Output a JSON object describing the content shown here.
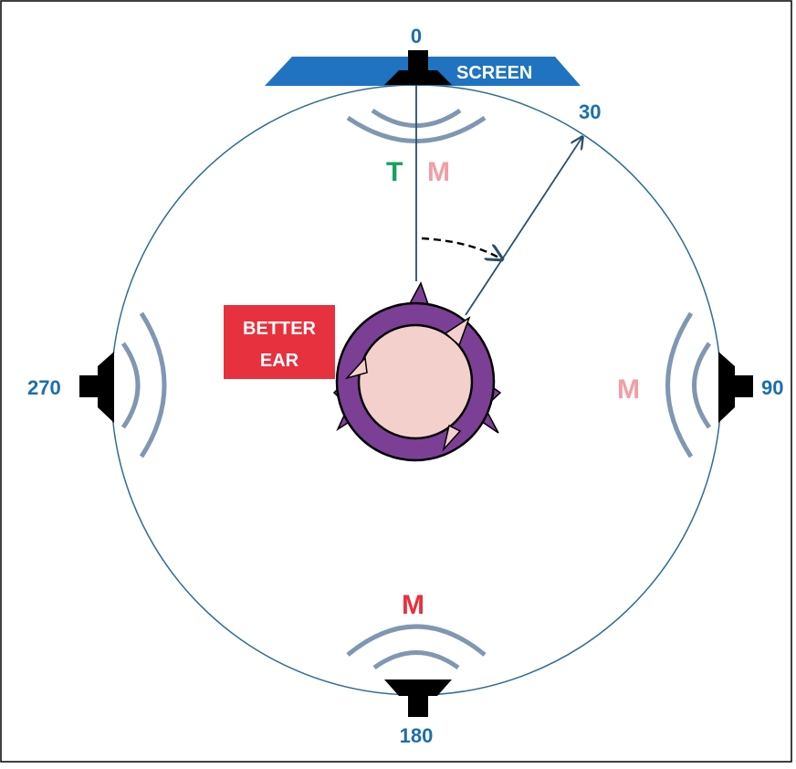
{
  "diagram": {
    "angles": {
      "front": "0",
      "right": "90",
      "back": "180",
      "left": "270",
      "target_angle": "30"
    },
    "screen_label": "SCREEN",
    "better_ear": {
      "line1": "BETTER",
      "line2": "EAR"
    },
    "source_labels": {
      "front_target": "T",
      "front_masker": "M",
      "right_masker": "M",
      "back_masker": "M"
    },
    "colors": {
      "angle_text": "#1a6fae",
      "screen": "#1f73c1",
      "circle": "#2f6d94",
      "arcs": "#7f97b2",
      "target_green": "#16a25c",
      "masker_pink": "#f29ea5",
      "masker_red": "#e8313e",
      "better_ear_box": "#e8313e",
      "head_ring": "#7c3f96",
      "head_fill": "#f4d0cc",
      "speaker": "#000000"
    }
  }
}
